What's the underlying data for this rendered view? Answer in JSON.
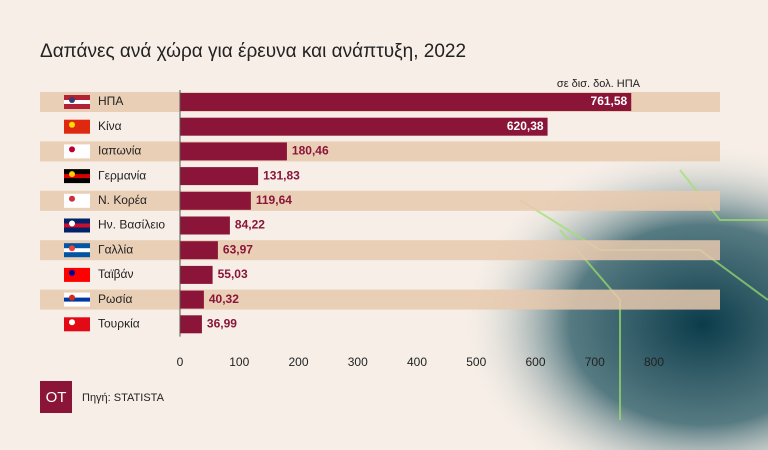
{
  "chart_data": {
    "type": "bar",
    "orientation": "horizontal",
    "title": "Δαπάνες ανά χώρα για έρευνα και ανάπτυξη, 2022",
    "unit_label": "σε δισ. δολ. ΗΠΑ",
    "categories": [
      "ΗΠΑ",
      "Κίνα",
      "Ιαπωνία",
      "Γερμανία",
      "Ν. Κορέα",
      "Ην. Βασίλειο",
      "Γαλλία",
      "Ταϊβάν",
      "Ρωσία",
      "Τουρκία"
    ],
    "values": [
      761.58,
      620.38,
      180.46,
      131.83,
      119.64,
      84.22,
      63.97,
      55.03,
      40.32,
      36.99
    ],
    "value_labels": [
      "761,58",
      "620,38",
      "180,46",
      "131,83",
      "119,64",
      "84,22",
      "63,97",
      "55,03",
      "40,32",
      "36,99"
    ],
    "color": "#8a1538",
    "xlim": [
      0,
      800
    ],
    "xticks": [
      0,
      100,
      200,
      300,
      400,
      500,
      600,
      700,
      800
    ],
    "source": "Πηγή: STATISTA",
    "logo": "OT"
  }
}
